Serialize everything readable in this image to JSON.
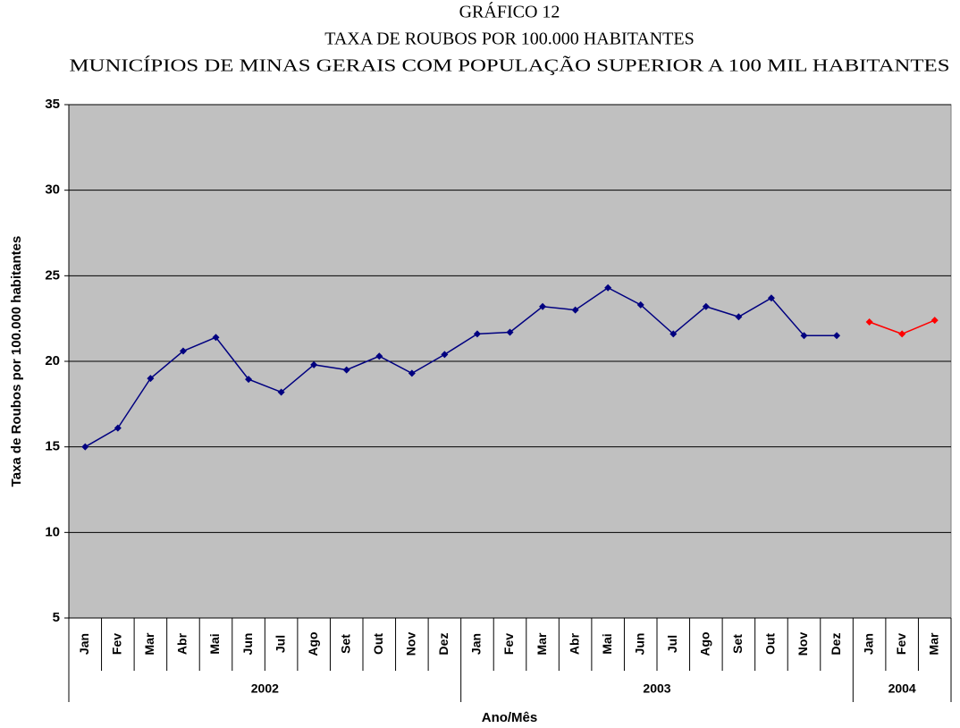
{
  "chart_data": {
    "type": "line",
    "title": [
      "GRÁFICO 12",
      "TAXA DE ROUBOS POR 100.000 HABITANTES",
      "MUNICÍPIOS DE MINAS GERAIS COM POPULAÇÃO SUPERIOR A 100 MIL HABITANTES"
    ],
    "y_label": "Taxa de Roubos por 100.000 habitantes",
    "x_label": "Ano/Mês",
    "categories": [
      "Jan",
      "Fev",
      "Mar",
      "Abr",
      "Mai",
      "Jun",
      "Jul",
      "Ago",
      "Set",
      "Out",
      "Nov",
      "Dez",
      "Jan",
      "Fev",
      "Mar",
      "Abr",
      "Mai",
      "Jun",
      "Jul",
      "Ago",
      "Set",
      "Out",
      "Nov",
      "Dez",
      "Jan",
      "Fev",
      "Mar"
    ],
    "year_groups": [
      {
        "label": "2002",
        "months": 12
      },
      {
        "label": "2003",
        "months": 12
      },
      {
        "label": "2004",
        "months": 3
      }
    ],
    "series": [
      {
        "color": "#000080",
        "values": [
          15.0,
          16.1,
          19.0,
          20.6,
          21.4,
          18.95,
          18.2,
          19.8,
          19.5,
          20.3,
          19.3,
          20.4,
          21.6,
          21.7,
          23.2,
          23.0,
          24.3,
          23.3,
          21.6,
          23.2,
          22.6,
          23.7,
          21.5,
          21.5,
          null,
          null,
          null
        ]
      },
      {
        "color": "#ff0000",
        "values": [
          null,
          null,
          null,
          null,
          null,
          null,
          null,
          null,
          null,
          null,
          null,
          null,
          null,
          null,
          null,
          null,
          null,
          null,
          null,
          null,
          null,
          null,
          null,
          null,
          22.3,
          21.6,
          22.4
        ]
      }
    ],
    "ylim": [
      5,
      35
    ],
    "yticks": [
      5,
      10,
      15,
      20,
      25,
      30,
      35
    ],
    "grid": true,
    "plot_background": "#c0c0c0"
  }
}
